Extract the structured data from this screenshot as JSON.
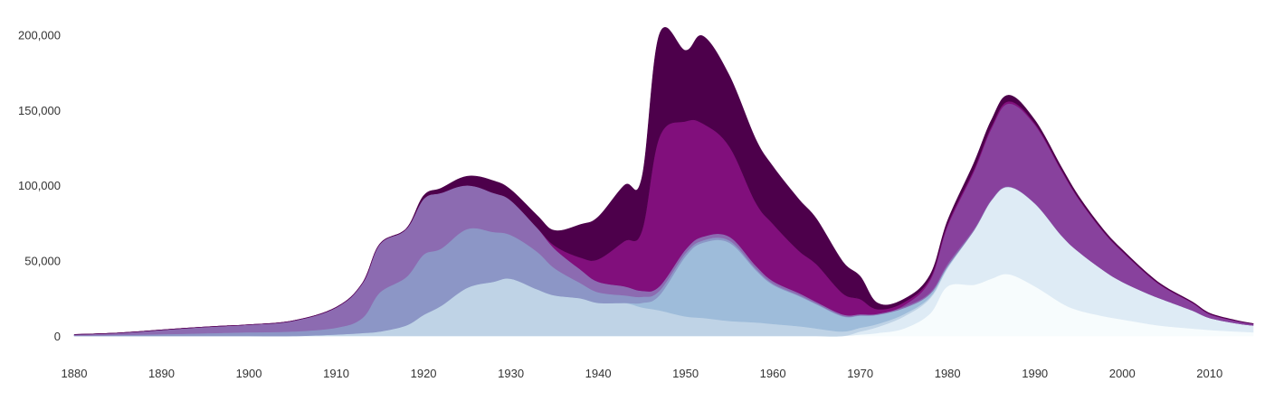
{
  "chart_data": {
    "type": "area",
    "stacked": true,
    "x": [
      1880,
      1885,
      1890,
      1895,
      1900,
      1905,
      1910,
      1913,
      1915,
      1918,
      1920,
      1922,
      1925,
      1928,
      1930,
      1933,
      1935,
      1938,
      1940,
      1943,
      1945,
      1947,
      1950,
      1952,
      1955,
      1958,
      1960,
      1963,
      1965,
      1968,
      1970,
      1972,
      1975,
      1978,
      1980,
      1983,
      1985,
      1987,
      1990,
      1993,
      1995,
      1998,
      2000,
      2003,
      2005,
      2008,
      2010,
      2013,
      2015
    ],
    "series": [
      {
        "color": "#f7fcfd",
        "values": [
          0,
          0,
          0,
          0,
          0,
          0,
          0,
          0,
          0,
          0,
          0,
          0,
          0,
          0,
          0,
          0,
          0,
          0,
          0,
          0,
          0,
          0,
          0,
          0,
          0,
          0,
          0,
          0,
          0,
          0,
          1000,
          2000,
          5000,
          15000,
          33000,
          34000,
          38000,
          41000,
          33000,
          22000,
          17000,
          13000,
          11000,
          8000,
          6500,
          5000,
          4000,
          3000,
          2500
        ]
      },
      {
        "color": "#deebf5",
        "values": [
          0,
          0,
          0,
          0,
          0,
          0,
          0,
          0,
          0,
          0,
          0,
          0,
          0,
          0,
          0,
          0,
          0,
          0,
          0,
          0,
          0,
          0,
          0,
          0,
          0,
          0,
          0,
          0,
          0,
          0,
          2000,
          4000,
          8000,
          10000,
          12000,
          36000,
          52000,
          58000,
          55000,
          45000,
          39000,
          30000,
          25000,
          20000,
          17000,
          12000,
          8000,
          5500,
          4500
        ]
      },
      {
        "color": "#bfd3e6",
        "values": [
          0,
          0,
          0,
          0,
          0,
          0,
          1000,
          2000,
          3000,
          7000,
          14000,
          20000,
          32000,
          36000,
          38000,
          31000,
          27000,
          25000,
          22000,
          22000,
          19000,
          17000,
          13000,
          12000,
          10000,
          9000,
          8000,
          6500,
          5000,
          3000,
          2500,
          2000,
          1500,
          1000,
          500,
          0,
          0,
          0,
          0,
          0,
          0,
          0,
          0,
          0,
          0,
          0,
          0,
          0,
          0
        ]
      },
      {
        "color": "#9ebcda",
        "values": [
          0,
          0,
          0,
          0,
          0,
          0,
          0,
          0,
          0,
          0,
          0,
          0,
          0,
          0,
          0,
          0,
          0,
          0,
          0,
          0,
          3000,
          10000,
          40000,
          50000,
          52000,
          35000,
          26000,
          20000,
          16000,
          10000,
          8000,
          6000,
          4000,
          2000,
          1000,
          0,
          0,
          0,
          0,
          0,
          0,
          0,
          0,
          0,
          0,
          0,
          0,
          0,
          0
        ]
      },
      {
        "color": "#8c96c6",
        "values": [
          300,
          700,
          1200,
          1800,
          2500,
          3000,
          4500,
          10000,
          26000,
          32000,
          40000,
          38000,
          39000,
          33000,
          29000,
          25000,
          18000,
          10000,
          7000,
          5000,
          4000,
          3000,
          2000,
          1500,
          1500,
          1000,
          800,
          600,
          500,
          400,
          300,
          200,
          100,
          0,
          0,
          0,
          0,
          0,
          0,
          0,
          0,
          0,
          0,
          0,
          0,
          0,
          0,
          0,
          0
        ]
      },
      {
        "color": "#8c6bb1",
        "values": [
          700,
          1300,
          2800,
          4200,
          5000,
          7000,
          13500,
          23000,
          32000,
          32000,
          37000,
          37000,
          29000,
          26000,
          23000,
          16000,
          13000,
          9000,
          7000,
          6000,
          4000,
          3000,
          2500,
          2500,
          2500,
          2000,
          1700,
          1400,
          1100,
          900,
          700,
          600,
          800,
          1000,
          1500,
          1000,
          500,
          300,
          200,
          100,
          0,
          0,
          0,
          0,
          0,
          0,
          0,
          0,
          0
        ]
      },
      {
        "color": "#88419d",
        "values": [
          0,
          0,
          0,
          0,
          0,
          0,
          0,
          0,
          0,
          0,
          0,
          0,
          0,
          0,
          0,
          0,
          0,
          0,
          0,
          0,
          0,
          0,
          0,
          0,
          0,
          0,
          0,
          0,
          0,
          0,
          0,
          0,
          1000,
          8000,
          25000,
          38000,
          47000,
          55000,
          52000,
          43000,
          35000,
          25000,
          20000,
          12000,
          8000,
          5000,
          2500,
          1500,
          1000
        ]
      },
      {
        "color": "#810f7c",
        "values": [
          0,
          0,
          0,
          0,
          0,
          0,
          0,
          0,
          0,
          0,
          0,
          0,
          0,
          0,
          0,
          0,
          2000,
          8000,
          15000,
          30000,
          40000,
          99000,
          85000,
          75000,
          60000,
          42000,
          38000,
          28000,
          25000,
          14000,
          10000,
          3000,
          2000,
          1500,
          1500,
          1500,
          1500,
          1500,
          1000,
          800,
          600,
          500,
          500,
          400,
          300,
          300,
          300,
          200,
          100
        ]
      },
      {
        "color": "#4d004b",
        "values": [
          0,
          0,
          0,
          0,
          0,
          0,
          0,
          0,
          0,
          0,
          2000,
          3000,
          6000,
          8000,
          7000,
          8000,
          10000,
          22000,
          28000,
          37000,
          35000,
          68000,
          47000,
          58000,
          47000,
          42000,
          38000,
          34000,
          30000,
          21000,
          15000,
          4000,
          2000,
          2000,
          2000,
          4000,
          4000,
          4000,
          2000,
          1500,
          1200,
          900,
          800,
          600,
          500,
          400,
          300,
          200,
          100
        ]
      }
    ],
    "xlim": [
      1880,
      2015
    ],
    "ylim": [
      0,
      205000
    ],
    "x_ticks": [
      1880,
      1890,
      1900,
      1910,
      1920,
      1930,
      1940,
      1950,
      1960,
      1970,
      1980,
      1990,
      2000,
      2010
    ],
    "y_ticks": [
      0,
      50000,
      100000,
      150000,
      200000
    ],
    "x_tick_labels": [
      "1880",
      "1890",
      "1900",
      "1910",
      "1920",
      "1930",
      "1940",
      "1950",
      "1960",
      "1970",
      "1980",
      "1990",
      "2000",
      "2010"
    ],
    "y_tick_labels": [
      "0",
      "50,000",
      "100,000",
      "150,000",
      "200,000"
    ],
    "grid": false,
    "legend": "none"
  }
}
